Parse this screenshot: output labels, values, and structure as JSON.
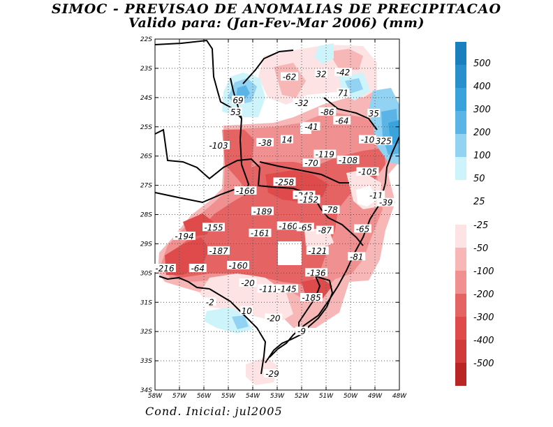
{
  "title": "SIMOC - PREVISAO DE ANOMALIAS DE PRECIPITACAO",
  "subtitle": "Valido para: (Jan-Fev-Mar 2006) (mm)",
  "footer": "Cond. Inicial: jul2005",
  "lat_labels": [
    "22S",
    "23S",
    "24S",
    "25S",
    "26S",
    "27S",
    "28S",
    "29S",
    "30S",
    "31S",
    "32S",
    "33S",
    "34S"
  ],
  "lon_labels": [
    "58W",
    "57W",
    "56W",
    "55W",
    "54W",
    "53W",
    "52W",
    "51W",
    "50W",
    "49W",
    "48W"
  ],
  "colorbar": {
    "positive": [
      {
        "label": "500",
        "color": "#1a7fbf"
      },
      {
        "label": "400",
        "color": "#2a90cc"
      },
      {
        "label": "300",
        "color": "#3aa3db"
      },
      {
        "label": "200",
        "color": "#5ab4e6"
      },
      {
        "label": "100",
        "color": "#92d2f3"
      },
      {
        "label": "50",
        "color": "#cef4fb"
      },
      {
        "label": "25",
        "color": "#ffffff"
      }
    ],
    "negative": [
      {
        "label": "-25",
        "color": "#fde3e3"
      },
      {
        "label": "-50",
        "color": "#f8b7b7"
      },
      {
        "label": "-100",
        "color": "#f09090"
      },
      {
        "label": "-200",
        "color": "#e66363"
      },
      {
        "label": "-300",
        "color": "#df4a4a"
      },
      {
        "label": "-400",
        "color": "#d13a3a"
      },
      {
        "label": "-500",
        "color": "#b92424"
      }
    ]
  },
  "anomaly_labels": [
    {
      "text": "-62",
      "lon": -52.5,
      "lat": -23.3
    },
    {
      "text": "32",
      "lon": -51.2,
      "lat": -23.2
    },
    {
      "text": "-42",
      "lon": -50.3,
      "lat": -23.15
    },
    {
      "text": "71",
      "lon": -50.3,
      "lat": -23.85
    },
    {
      "text": "69",
      "lon": -54.6,
      "lat": -24.1
    },
    {
      "text": "53",
      "lon": -54.7,
      "lat": -24.5
    },
    {
      "text": "-32",
      "lon": -52.0,
      "lat": -24.2
    },
    {
      "text": "-86",
      "lon": -50.95,
      "lat": -24.5
    },
    {
      "text": "35",
      "lon": -49.05,
      "lat": -24.55
    },
    {
      "text": "-64",
      "lon": -50.35,
      "lat": -24.8
    },
    {
      "text": "-41",
      "lon": -51.6,
      "lat": -25.0
    },
    {
      "text": "14",
      "lon": -52.6,
      "lat": -25.45
    },
    {
      "text": "-103",
      "lon": -55.4,
      "lat": -25.65
    },
    {
      "text": "-38",
      "lon": -53.5,
      "lat": -25.55
    },
    {
      "text": "-10",
      "lon": -49.3,
      "lat": -25.45
    },
    {
      "text": "325",
      "lon": -48.65,
      "lat": -25.5
    },
    {
      "text": "-119",
      "lon": -51.05,
      "lat": -25.95
    },
    {
      "text": "-108",
      "lon": -50.1,
      "lat": -26.15
    },
    {
      "text": "-70",
      "lon": -51.6,
      "lat": -26.25
    },
    {
      "text": "-105",
      "lon": -49.3,
      "lat": -26.55
    },
    {
      "text": "-258",
      "lon": -52.7,
      "lat": -26.9
    },
    {
      "text": "-166",
      "lon": -54.3,
      "lat": -27.2
    },
    {
      "text": "-243",
      "lon": -51.9,
      "lat": -27.35
    },
    {
      "text": "-152",
      "lon": -51.7,
      "lat": -27.5
    },
    {
      "text": "-11",
      "lon": -48.95,
      "lat": -27.35
    },
    {
      "text": "-39",
      "lon": -48.55,
      "lat": -27.6
    },
    {
      "text": "-189",
      "lon": -53.6,
      "lat": -27.9
    },
    {
      "text": "-78",
      "lon": -50.8,
      "lat": -27.85
    },
    {
      "text": "-155",
      "lon": -55.6,
      "lat": -28.45
    },
    {
      "text": "-161",
      "lon": -53.7,
      "lat": -28.65
    },
    {
      "text": "-160",
      "lon": -52.55,
      "lat": -28.4
    },
    {
      "text": "-65",
      "lon": -51.85,
      "lat": -28.45
    },
    {
      "text": "-87",
      "lon": -51.05,
      "lat": -28.55
    },
    {
      "text": "-65",
      "lon": -49.5,
      "lat": -28.5
    },
    {
      "text": "-194",
      "lon": -56.8,
      "lat": -28.75
    },
    {
      "text": "-187",
      "lon": -55.4,
      "lat": -29.25
    },
    {
      "text": "-121",
      "lon": -51.35,
      "lat": -29.25
    },
    {
      "text": "-81",
      "lon": -49.75,
      "lat": -29.45
    },
    {
      "text": "-160",
      "lon": -54.6,
      "lat": -29.75
    },
    {
      "text": "-216",
      "lon": -57.6,
      "lat": -29.85
    },
    {
      "text": "-64",
      "lon": -56.25,
      "lat": -29.85
    },
    {
      "text": "-136",
      "lon": -51.4,
      "lat": -30.0
    },
    {
      "text": "-20",
      "lon": -54.2,
      "lat": -30.35
    },
    {
      "text": "-111",
      "lon": -53.35,
      "lat": -30.55
    },
    {
      "text": "-145",
      "lon": -52.6,
      "lat": -30.55
    },
    {
      "text": "-185",
      "lon": -51.6,
      "lat": -30.85
    },
    {
      "text": "-2",
      "lon": -55.75,
      "lat": -31.0
    },
    {
      "text": "10",
      "lon": -54.25,
      "lat": -31.3
    },
    {
      "text": "-20",
      "lon": -53.15,
      "lat": -31.55
    },
    {
      "text": "-9",
      "lon": -52.0,
      "lat": -32.0
    },
    {
      "text": "-29",
      "lon": -53.2,
      "lat": -33.45
    }
  ]
}
